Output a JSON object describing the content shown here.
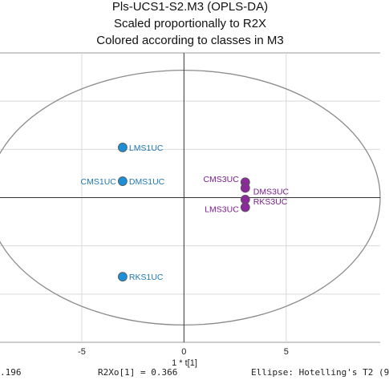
{
  "chart_data": {
    "type": "scatter",
    "title": "Pls-UCS1-S2.M3 (OPLS-DA)",
    "subtitle_1": "Scaled proportionally to R2X",
    "subtitle_2": "Colored according to classes in M3",
    "xlabel": "1 * t[1]",
    "xlim": [
      -9,
      9.6
    ],
    "ylim": [
      -1.5,
      1.5
    ],
    "x_ticks": [
      -5,
      0,
      5
    ],
    "grid": true,
    "series": [
      {
        "color": "#1e8fd6",
        "label_color": "#1f78b4",
        "points": [
          {
            "label": "LMS1UC",
            "x": -3.0,
            "y": 0.52
          },
          {
            "label": "CMS1UC",
            "x": -3.0,
            "y": 0.17
          },
          {
            "label": "DMS1UC",
            "x": -3.0,
            "y": 0.17
          },
          {
            "label": "RKS1UC",
            "x": -3.0,
            "y": -0.82
          }
        ]
      },
      {
        "color": "#8b2a9b",
        "label_color": "#7b1e8e",
        "points": [
          {
            "label": "CMS3UC",
            "x": 3.0,
            "y": 0.16
          },
          {
            "label": "DMS3UC",
            "x": 3.0,
            "y": 0.1
          },
          {
            "label": "RKS3UC",
            "x": 3.0,
            "y": -0.02
          },
          {
            "label": "LMS3UC",
            "x": 3.0,
            "y": -0.1
          }
        ]
      }
    ],
    "ellipse": {
      "rx": 9.6,
      "ry": 1.32
    }
  },
  "footer": {
    "left": ".196",
    "middle": "R2Xo[1] = 0.366",
    "right": "Ellipse: Hotelling's T2 (9"
  }
}
